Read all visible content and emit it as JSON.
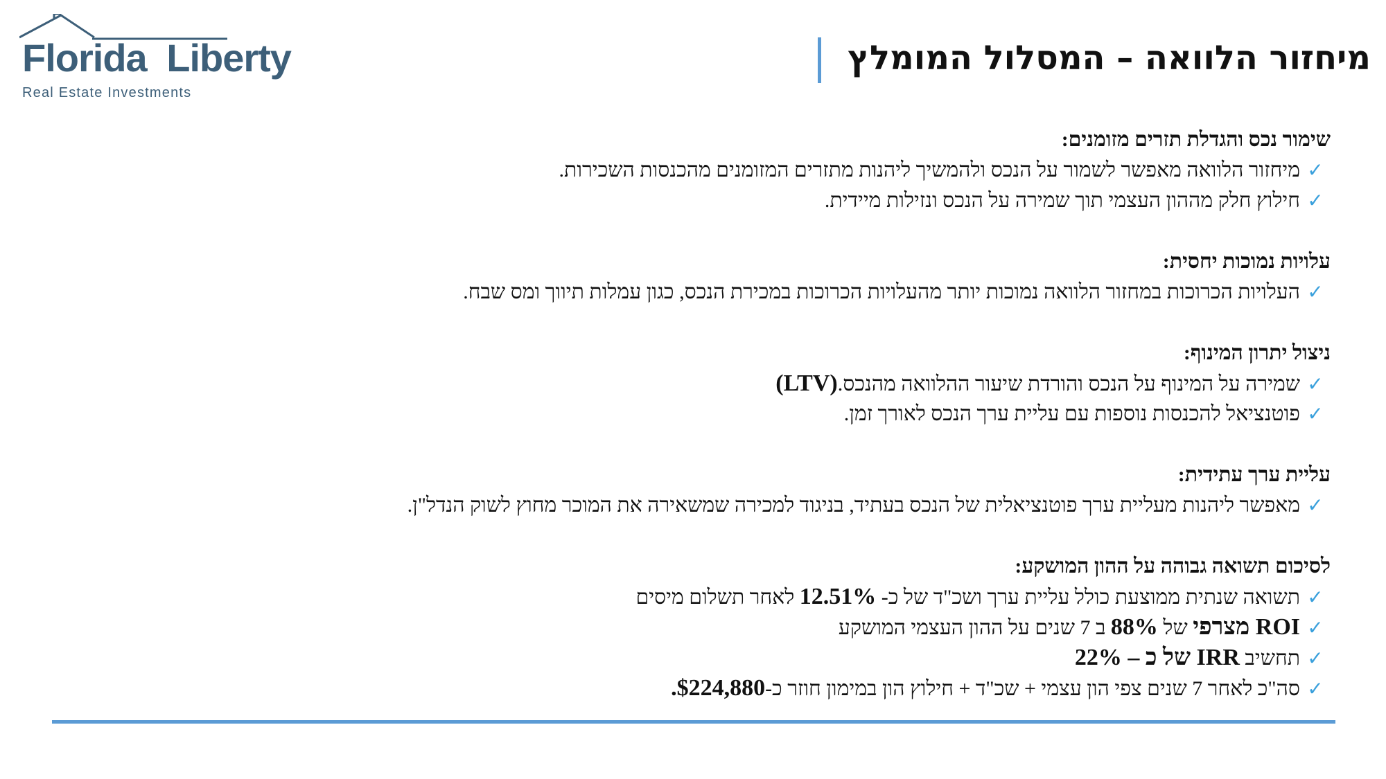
{
  "logo": {
    "name": "Florida  Liberty",
    "subtitle": "Real Estate Investments",
    "color": "#3d5f79"
  },
  "title": "מיחזור הלוואה – המסלול המומלץ",
  "accent_color": "#5b9bd5",
  "check_color": "#3aa0dc",
  "check_icon": "check-icon",
  "sections": [
    {
      "heading": "שימור נכס והגדלת תזרים מזומנים:",
      "bullets": [
        "מיחזור הלוואה מאפשר לשמור על הנכס ולהמשיך ליהנות מתזרים המזומנים מהכנסות השכירות.",
        "חילוץ חלק מההון העצמי תוך שמירה על הנכס ונזילות מיידית."
      ]
    },
    {
      "heading": "עלויות נמוכות יחסית:",
      "bullets": [
        "העלויות הכרוכות במחזור הלוואה נמוכות יותר מהעלויות הכרוכות במכירת הנכס, כגון עמלות תיווך ומס שבח."
      ]
    },
    {
      "heading": "ניצול יתרון המינוף:",
      "bullets": [
        "שמירה על המינוף על הנכס והורדת שיעור ההלוואה מהנכס.",
        "פוטנציאל להכנסות נוספות עם עליית ערך הנכס לאורך זמן."
      ],
      "ltv": "(LTV)"
    },
    {
      "heading": "עליית ערך עתידית:",
      "bullets": [
        "מאפשר ליהנות מעליית ערך פוטנציאלית של הנכס בעתיד, בניגוד למכירה שמשאירה את המוכר מחוץ לשוק הנדל\"ן."
      ]
    },
    {
      "heading": "לסיכום תשואה גבוהה על ההון המושקע:",
      "summary": {
        "b1_pre": "תשואה שנתית ממוצעת כולל עליית ערך ושכ\"ד של כ- ",
        "b1_value": "12.51%",
        "b1_post": " לאחר תשלום מיסים",
        "b2_roi": "ROI מצרפי",
        "b2_mid1": " של ",
        "b2_value": "88%",
        "b2_mid2": " ב 7 שנים על ההון העצמי המושקע",
        "b3_pre": "תחשיב ",
        "b3_irr": "IRR של כ – ",
        "b3_value": "22%",
        "b4_pre": "סה\"כ לאחר 7 שנים צפי הון עצמי + שכ\"ד + חילוץ הון במימון חוזר כ-",
        "b4_value": "$224,880."
      }
    }
  ]
}
